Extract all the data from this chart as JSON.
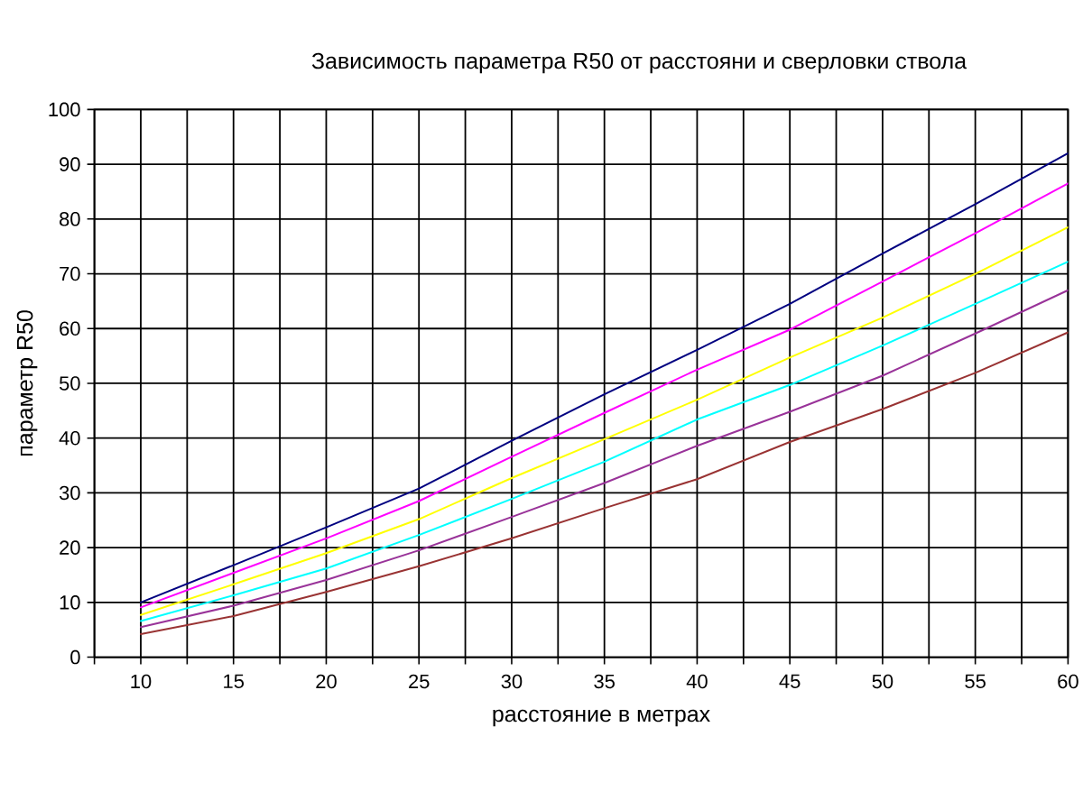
{
  "chart_data": {
    "type": "line",
    "title": "Зависимость параметра R50 от расстояни и сверловки ствола",
    "xlabel": "расстояние в метрах",
    "ylabel": "параметр R50",
    "x": [
      10,
      15,
      20,
      25,
      30,
      35,
      40,
      45,
      50,
      55,
      60
    ],
    "series": [
      {
        "color": "#000080",
        "values": [
          10,
          16.8,
          23.7,
          30.8,
          39.5,
          48,
          56.1,
          64.5,
          73.7,
          82.7,
          92
        ]
      },
      {
        "color": "#ff00ff",
        "values": [
          9.1,
          15.4,
          21.7,
          28.5,
          36.6,
          44.6,
          52.5,
          59.8,
          68.6,
          77.4,
          86.5
        ]
      },
      {
        "color": "#ffff00",
        "values": [
          7.7,
          13.3,
          19,
          25.2,
          32.7,
          39.8,
          47,
          54.7,
          62,
          70,
          78.5
        ]
      },
      {
        "color": "#00ffff",
        "values": [
          6.6,
          11.3,
          16.2,
          22.3,
          28.9,
          35.7,
          43.4,
          49.7,
          56.9,
          64.5,
          72.2
        ]
      },
      {
        "color": "#993399",
        "values": [
          5.5,
          9.4,
          14.1,
          19.5,
          25.6,
          31.8,
          38.6,
          44.8,
          51.4,
          59.1,
          67
        ]
      },
      {
        "color": "#993333",
        "values": [
          4.2,
          7.5,
          11.9,
          16.6,
          21.7,
          27.2,
          32.5,
          39.3,
          45.3,
          51.9,
          59.3
        ]
      }
    ],
    "xlim": [
      7.5,
      60
    ],
    "xticks": [
      {
        "value": 7.5,
        "label": null
      },
      10,
      {
        "value": 12.5,
        "label": null
      },
      15,
      {
        "value": 17.5,
        "label": null
      },
      20,
      {
        "value": 22.5,
        "label": null
      },
      25,
      {
        "value": 27.5,
        "label": null
      },
      30,
      {
        "value": 32.5,
        "label": null
      },
      35,
      {
        "value": 37.5,
        "label": null
      },
      40,
      {
        "value": 42.5,
        "label": null
      },
      45,
      {
        "value": 47.5,
        "label": null
      },
      50,
      {
        "value": 52.5,
        "label": null
      },
      55,
      {
        "value": 57.5,
        "label": null
      },
      60
    ],
    "ylim": [
      0,
      100
    ],
    "yticks": [
      0,
      10,
      20,
      30,
      40,
      50,
      60,
      70,
      80,
      90,
      100
    ],
    "grid": true,
    "line_style": "solid"
  }
}
